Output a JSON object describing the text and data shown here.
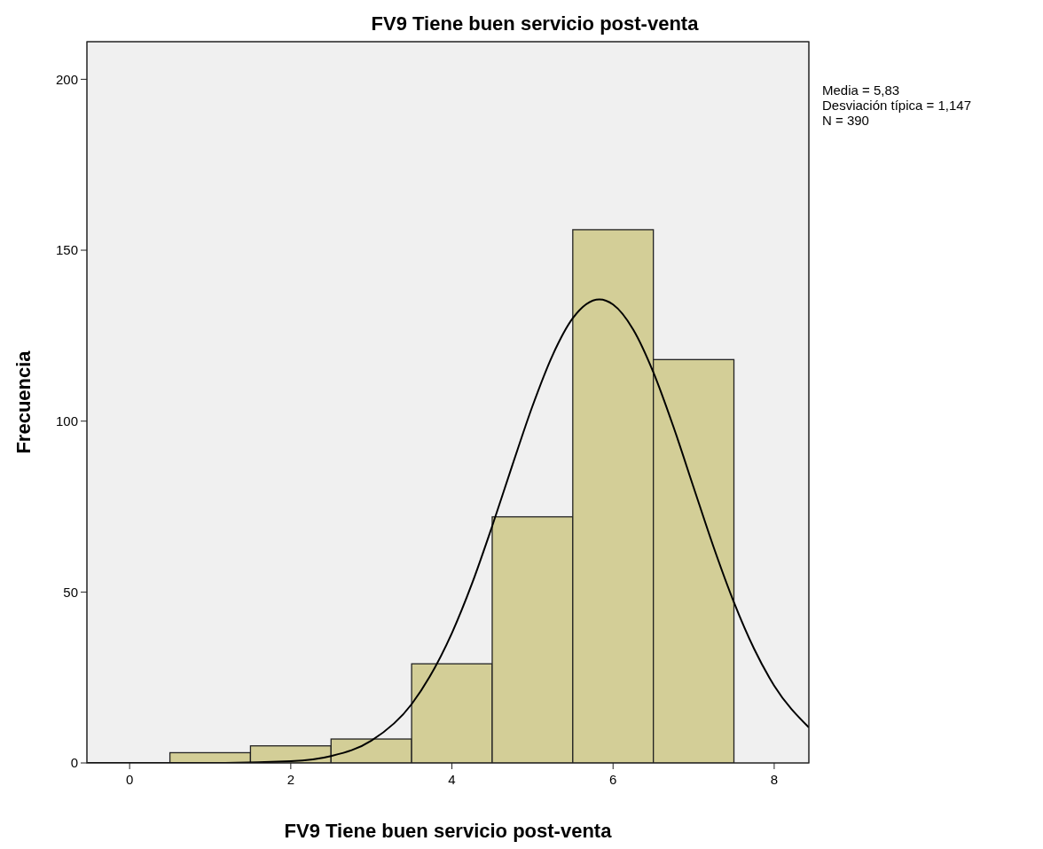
{
  "chart_data": {
    "type": "histogram",
    "title": "FV9 Tiene buen servicio post-venta",
    "xlabel": "FV9 Tiene buen servicio post-venta",
    "ylabel": "Frecuencia",
    "annotations": [
      "Media = 5,83",
      "Desviación típica = 1,147",
      "N = 390"
    ],
    "xlim": [
      -0.53,
      8.43
    ],
    "ylim": [
      0,
      211
    ],
    "xticks": [
      0,
      2,
      4,
      6,
      8
    ],
    "yticks": [
      0,
      50,
      100,
      150,
      200
    ],
    "grid": false,
    "series": [
      {
        "color": "#d3ce97",
        "bins": [
          0.5,
          1.5,
          2.5,
          3.5,
          4.5,
          5.5,
          6.5,
          7.5
        ],
        "values": [
          3,
          5,
          7,
          29,
          72,
          156,
          118
        ]
      },
      {
        "type": "line",
        "color": "#000000",
        "x": [
          -0.53,
          1,
          2,
          2.5,
          3,
          3.5,
          4,
          4.25,
          4.5,
          4.75,
          5,
          5.25,
          5.5,
          5.83,
          6,
          6.25,
          6.5,
          6.75,
          7,
          7.25,
          7.5,
          7.75,
          8,
          8.43
        ],
        "values": [
          0,
          0,
          0.5,
          2,
          6.5,
          17.2,
          38,
          52.5,
          69.3,
          87.1,
          104.4,
          119.3,
          130.1,
          135.6,
          134.1,
          126.8,
          114.3,
          98.3,
          80.6,
          63,
          47,
          33.4,
          22.6,
          10.4
        ]
      }
    ]
  }
}
